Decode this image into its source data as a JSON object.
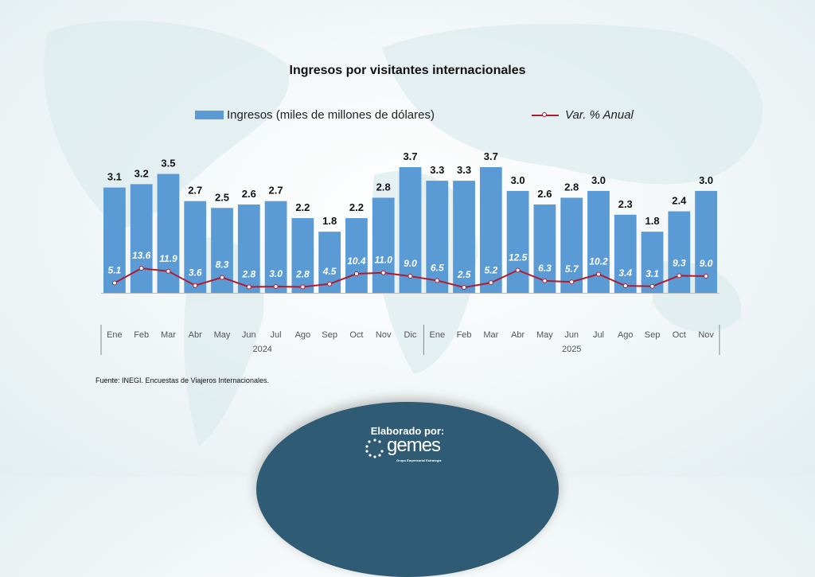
{
  "chart_data": {
    "type": "bar",
    "title": "Ingresos por visitantes internacionales",
    "categories": [
      "Ene",
      "Feb",
      "Mar",
      "Abr",
      "May",
      "Jun",
      "Jul",
      "Ago",
      "Sep",
      "Oct",
      "Nov",
      "Dic",
      "Ene",
      "Feb",
      "Mar",
      "Abr",
      "May",
      "Jun",
      "Jul",
      "Ago",
      "Sep",
      "Oct",
      "Nov"
    ],
    "groups": [
      {
        "label": "2024",
        "count": 12
      },
      {
        "label": "2025",
        "count": 11
      }
    ],
    "series": [
      {
        "name": "Ingresos (miles de millones de dólares)",
        "type": "bar",
        "color": "#5b9bd5",
        "values": [
          3.1,
          3.2,
          3.5,
          2.7,
          2.5,
          2.6,
          2.7,
          2.2,
          1.8,
          2.2,
          2.8,
          3.7,
          3.3,
          3.3,
          3.7,
          3.0,
          2.6,
          2.8,
          3.0,
          2.3,
          1.8,
          2.4,
          3.0
        ]
      },
      {
        "name": "Var. % Anual",
        "type": "line",
        "color": "#b01c2e",
        "values": [
          5.1,
          13.6,
          11.9,
          3.6,
          8.3,
          2.8,
          3.0,
          2.8,
          4.5,
          10.4,
          11.0,
          9.0,
          6.5,
          2.5,
          5.2,
          12.5,
          6.3,
          5.7,
          10.2,
          3.4,
          3.1,
          9.3,
          9.0
        ]
      }
    ],
    "legend_position": "top",
    "grid": false
  },
  "source": "Fuente: INEGI. Encuestas de Viajeros Internacionales.",
  "footer": {
    "label": "Elaborado por:",
    "logo_text": "gemes",
    "logo_subtitle": "Grupo Empresarial Estrategia"
  }
}
